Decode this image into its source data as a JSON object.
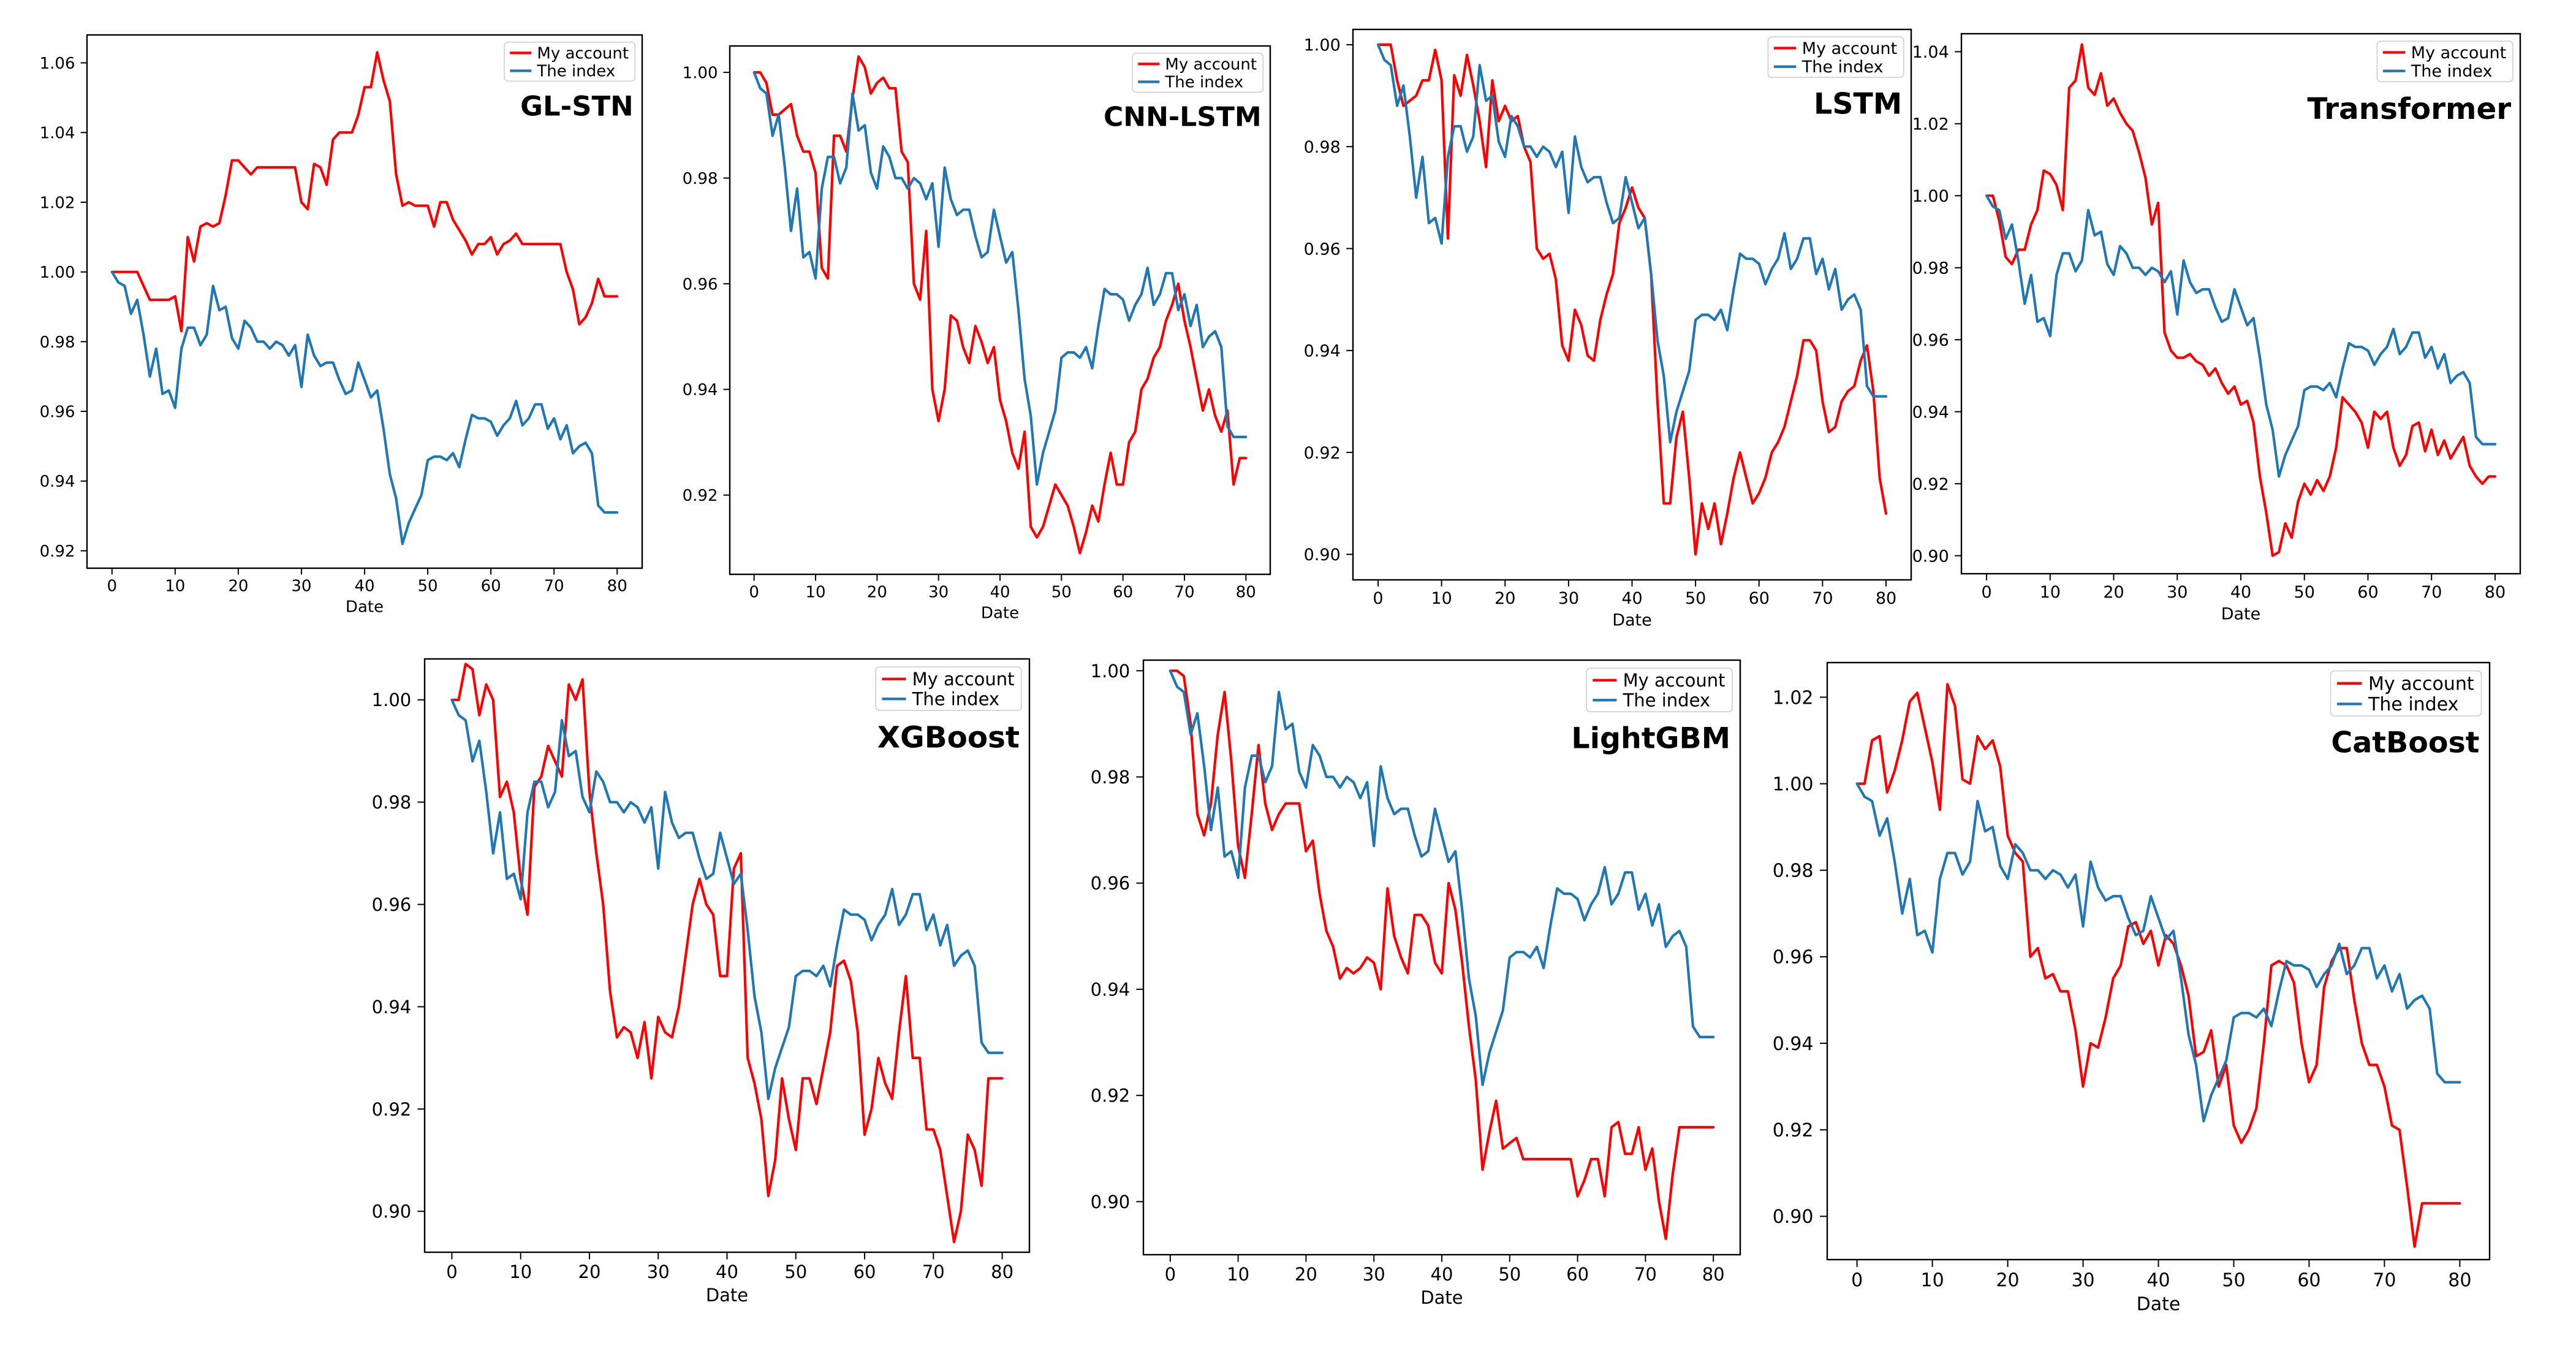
{
  "colors": {
    "account": "#ff0000",
    "index": "#1f77b4",
    "axis": "#000000",
    "background": "#ffffff"
  },
  "legend": {
    "account": "My account",
    "index": "The index"
  },
  "xlabel": "Date",
  "xticks": [
    0,
    10,
    20,
    30,
    40,
    50,
    60,
    70,
    80
  ],
  "index_series": [
    1.0,
    0.997,
    0.996,
    0.988,
    0.992,
    0.982,
    0.97,
    0.978,
    0.965,
    0.966,
    0.961,
    0.978,
    0.984,
    0.984,
    0.979,
    0.982,
    0.996,
    0.989,
    0.99,
    0.981,
    0.978,
    0.986,
    0.984,
    0.98,
    0.98,
    0.978,
    0.98,
    0.979,
    0.976,
    0.979,
    0.967,
    0.982,
    0.976,
    0.973,
    0.974,
    0.974,
    0.969,
    0.965,
    0.966,
    0.974,
    0.969,
    0.964,
    0.966,
    0.955,
    0.942,
    0.935,
    0.922,
    0.928,
    0.932,
    0.936,
    0.946,
    0.947,
    0.947,
    0.946,
    0.948,
    0.944,
    0.952,
    0.959,
    0.958,
    0.958,
    0.957,
    0.953,
    0.956,
    0.958,
    0.963,
    0.956,
    0.958,
    0.962,
    0.962,
    0.955,
    0.958,
    0.952,
    0.956,
    0.948,
    0.95,
    0.951,
    0.948,
    0.933,
    0.931,
    0.931,
    0.931
  ],
  "chart_data": [
    {
      "type": "line",
      "title": "GL-STN",
      "xlabel": "Date",
      "xlim": [
        0,
        80
      ],
      "ylim": [
        0.915,
        1.068
      ],
      "yticks": [
        0.92,
        0.94,
        0.96,
        0.98,
        1.0,
        1.02,
        1.04,
        1.06
      ],
      "series": [
        {
          "name": "My account",
          "values": [
            1.0,
            1.0,
            1.0,
            1.0,
            1.0,
            0.996,
            0.992,
            0.992,
            0.992,
            0.992,
            0.993,
            0.983,
            1.01,
            1.003,
            1.013,
            1.014,
            1.013,
            1.014,
            1.022,
            1.032,
            1.032,
            1.03,
            1.028,
            1.03,
            1.03,
            1.03,
            1.03,
            1.03,
            1.03,
            1.03,
            1.02,
            1.018,
            1.031,
            1.03,
            1.025,
            1.038,
            1.04,
            1.04,
            1.04,
            1.045,
            1.053,
            1.053,
            1.063,
            1.055,
            1.049,
            1.028,
            1.019,
            1.02,
            1.019,
            1.019,
            1.019,
            1.013,
            1.02,
            1.02,
            1.015,
            1.012,
            1.009,
            1.005,
            1.008,
            1.008,
            1.01,
            1.005,
            1.008,
            1.009,
            1.011,
            1.008,
            1.008,
            1.008,
            1.008,
            1.008,
            1.008,
            1.008,
            1.0,
            0.995,
            0.985,
            0.987,
            0.991,
            0.998,
            0.993,
            0.993,
            0.993
          ],
          "color": "#ff0000"
        },
        {
          "name": "The index",
          "ref": "index_series",
          "color": "#1f77b4"
        }
      ]
    },
    {
      "type": "line",
      "title": "CNN-LSTM",
      "xlabel": "Date",
      "xlim": [
        0,
        80
      ],
      "ylim": [
        0.905,
        1.005
      ],
      "yticks": [
        0.92,
        0.94,
        0.96,
        0.98,
        1.0
      ],
      "series": [
        {
          "name": "My account",
          "values": [
            1.0,
            1.0,
            0.998,
            0.992,
            0.992,
            0.993,
            0.994,
            0.988,
            0.985,
            0.985,
            0.981,
            0.963,
            0.961,
            0.988,
            0.988,
            0.985,
            0.995,
            1.003,
            1.001,
            0.996,
            0.998,
            0.999,
            0.997,
            0.997,
            0.985,
            0.983,
            0.96,
            0.957,
            0.97,
            0.94,
            0.934,
            0.94,
            0.954,
            0.953,
            0.948,
            0.945,
            0.952,
            0.949,
            0.945,
            0.948,
            0.938,
            0.934,
            0.928,
            0.925,
            0.932,
            0.914,
            0.912,
            0.914,
            0.918,
            0.922,
            0.92,
            0.918,
            0.914,
            0.909,
            0.913,
            0.918,
            0.915,
            0.922,
            0.928,
            0.922,
            0.922,
            0.93,
            0.932,
            0.94,
            0.942,
            0.946,
            0.948,
            0.953,
            0.956,
            0.96,
            0.953,
            0.948,
            0.942,
            0.936,
            0.94,
            0.935,
            0.932,
            0.936,
            0.922,
            0.927,
            0.927
          ],
          "color": "#ff0000"
        },
        {
          "name": "The index",
          "ref": "index_series",
          "color": "#1f77b4"
        }
      ]
    },
    {
      "type": "line",
      "title": "LSTM",
      "xlabel": "Date",
      "xlim": [
        0,
        80
      ],
      "ylim": [
        0.895,
        1.003
      ],
      "yticks": [
        0.9,
        0.92,
        0.94,
        0.96,
        0.98,
        1.0
      ],
      "series": [
        {
          "name": "My account",
          "values": [
            1.0,
            1.0,
            1.0,
            0.993,
            0.988,
            0.989,
            0.99,
            0.993,
            0.993,
            0.999,
            0.993,
            0.962,
            0.994,
            0.99,
            0.998,
            0.992,
            0.985,
            0.976,
            0.993,
            0.985,
            0.988,
            0.985,
            0.986,
            0.98,
            0.977,
            0.96,
            0.958,
            0.959,
            0.954,
            0.941,
            0.938,
            0.948,
            0.945,
            0.939,
            0.938,
            0.946,
            0.951,
            0.955,
            0.965,
            0.968,
            0.972,
            0.968,
            0.966,
            0.955,
            0.93,
            0.91,
            0.91,
            0.923,
            0.928,
            0.915,
            0.9,
            0.91,
            0.905,
            0.91,
            0.902,
            0.908,
            0.915,
            0.92,
            0.915,
            0.91,
            0.912,
            0.915,
            0.92,
            0.922,
            0.925,
            0.93,
            0.935,
            0.942,
            0.942,
            0.94,
            0.93,
            0.924,
            0.925,
            0.93,
            0.932,
            0.933,
            0.938,
            0.941,
            0.932,
            0.915,
            0.908
          ],
          "color": "#ff0000"
        },
        {
          "name": "The index",
          "ref": "index_series",
          "color": "#1f77b4"
        }
      ]
    },
    {
      "type": "line",
      "title": "Transformer",
      "xlabel": "Date",
      "xlim": [
        0,
        80
      ],
      "ylim": [
        0.895,
        1.045
      ],
      "yticks": [
        0.9,
        0.92,
        0.94,
        0.96,
        0.98,
        1.0,
        1.02,
        1.04
      ],
      "series": [
        {
          "name": "My account",
          "values": [
            1.0,
            1.0,
            0.993,
            0.983,
            0.981,
            0.985,
            0.985,
            0.992,
            0.996,
            1.007,
            1.006,
            1.003,
            0.996,
            1.03,
            1.032,
            1.042,
            1.03,
            1.028,
            1.034,
            1.025,
            1.027,
            1.023,
            1.02,
            1.018,
            1.012,
            1.005,
            0.992,
            0.998,
            0.962,
            0.957,
            0.955,
            0.955,
            0.956,
            0.954,
            0.953,
            0.95,
            0.952,
            0.948,
            0.945,
            0.947,
            0.942,
            0.943,
            0.937,
            0.922,
            0.912,
            0.9,
            0.901,
            0.909,
            0.905,
            0.915,
            0.92,
            0.917,
            0.921,
            0.918,
            0.922,
            0.93,
            0.944,
            0.942,
            0.94,
            0.937,
            0.93,
            0.94,
            0.938,
            0.94,
            0.93,
            0.925,
            0.928,
            0.936,
            0.937,
            0.929,
            0.935,
            0.928,
            0.932,
            0.927,
            0.93,
            0.933,
            0.925,
            0.922,
            0.92,
            0.922,
            0.922
          ],
          "color": "#ff0000"
        },
        {
          "name": "The index",
          "ref": "index_series",
          "color": "#1f77b4"
        }
      ]
    },
    {
      "type": "line",
      "title": "XGBoost",
      "xlabel": "Date",
      "xlim": [
        0,
        80
      ],
      "ylim": [
        0.892,
        1.008
      ],
      "yticks": [
        0.9,
        0.92,
        0.94,
        0.96,
        0.98,
        1.0
      ],
      "series": [
        {
          "name": "My account",
          "values": [
            1.0,
            1.0,
            1.007,
            1.006,
            0.997,
            1.003,
            1.0,
            0.981,
            0.984,
            0.978,
            0.965,
            0.958,
            0.983,
            0.985,
            0.991,
            0.988,
            0.985,
            1.003,
            1.0,
            1.004,
            0.982,
            0.97,
            0.96,
            0.943,
            0.934,
            0.936,
            0.935,
            0.93,
            0.937,
            0.926,
            0.938,
            0.935,
            0.934,
            0.94,
            0.95,
            0.96,
            0.965,
            0.96,
            0.958,
            0.946,
            0.946,
            0.967,
            0.97,
            0.93,
            0.925,
            0.918,
            0.903,
            0.91,
            0.926,
            0.918,
            0.912,
            0.926,
            0.926,
            0.921,
            0.928,
            0.935,
            0.948,
            0.949,
            0.945,
            0.935,
            0.915,
            0.92,
            0.93,
            0.925,
            0.922,
            0.935,
            0.946,
            0.93,
            0.93,
            0.916,
            0.916,
            0.912,
            0.903,
            0.894,
            0.9,
            0.915,
            0.912,
            0.905,
            0.926,
            0.926,
            0.926
          ],
          "color": "#ff0000"
        },
        {
          "name": "The index",
          "ref": "index_series",
          "color": "#1f77b4"
        }
      ]
    },
    {
      "type": "line",
      "title": "LightGBM",
      "xlabel": "Date",
      "xlim": [
        0,
        80
      ],
      "ylim": [
        0.89,
        1.002
      ],
      "yticks": [
        0.9,
        0.92,
        0.94,
        0.96,
        0.98,
        1.0
      ],
      "series": [
        {
          "name": "My account",
          "values": [
            1.0,
            1.0,
            0.999,
            0.99,
            0.973,
            0.969,
            0.975,
            0.988,
            0.996,
            0.983,
            0.967,
            0.961,
            0.973,
            0.986,
            0.975,
            0.97,
            0.973,
            0.975,
            0.975,
            0.975,
            0.966,
            0.968,
            0.958,
            0.951,
            0.948,
            0.942,
            0.944,
            0.943,
            0.944,
            0.946,
            0.945,
            0.94,
            0.959,
            0.95,
            0.946,
            0.943,
            0.954,
            0.954,
            0.952,
            0.945,
            0.943,
            0.96,
            0.955,
            0.945,
            0.933,
            0.923,
            0.906,
            0.913,
            0.919,
            0.91,
            0.911,
            0.912,
            0.908,
            0.908,
            0.908,
            0.908,
            0.908,
            0.908,
            0.908,
            0.908,
            0.901,
            0.904,
            0.908,
            0.908,
            0.901,
            0.914,
            0.915,
            0.909,
            0.909,
            0.914,
            0.906,
            0.91,
            0.9,
            0.893,
            0.905,
            0.914,
            0.914,
            0.914,
            0.914,
            0.914,
            0.914
          ],
          "color": "#ff0000"
        },
        {
          "name": "The index",
          "ref": "index_series",
          "color": "#1f77b4"
        }
      ]
    },
    {
      "type": "line",
      "title": "CatBoost",
      "xlabel": "Date",
      "xlim": [
        0,
        80
      ],
      "ylim": [
        0.89,
        1.028
      ],
      "yticks": [
        0.9,
        0.92,
        0.94,
        0.96,
        0.98,
        1.0,
        1.02
      ],
      "series": [
        {
          "name": "My account",
          "values": [
            1.0,
            1.0,
            1.01,
            1.011,
            0.998,
            1.003,
            1.01,
            1.019,
            1.021,
            1.013,
            1.005,
            0.994,
            1.023,
            1.018,
            1.001,
            1.0,
            1.011,
            1.008,
            1.01,
            1.004,
            0.988,
            0.984,
            0.982,
            0.96,
            0.962,
            0.955,
            0.956,
            0.952,
            0.952,
            0.943,
            0.93,
            0.94,
            0.939,
            0.946,
            0.955,
            0.958,
            0.967,
            0.968,
            0.963,
            0.966,
            0.958,
            0.965,
            0.963,
            0.958,
            0.951,
            0.937,
            0.938,
            0.943,
            0.93,
            0.935,
            0.921,
            0.917,
            0.92,
            0.925,
            0.94,
            0.958,
            0.959,
            0.958,
            0.954,
            0.94,
            0.931,
            0.935,
            0.953,
            0.959,
            0.962,
            0.962,
            0.95,
            0.94,
            0.935,
            0.935,
            0.93,
            0.921,
            0.92,
            0.907,
            0.893,
            0.903,
            0.903,
            0.903,
            0.903,
            0.903,
            0.903
          ],
          "color": "#ff0000"
        },
        {
          "name": "The index",
          "ref": "index_series",
          "color": "#1f77b4"
        }
      ]
    }
  ]
}
